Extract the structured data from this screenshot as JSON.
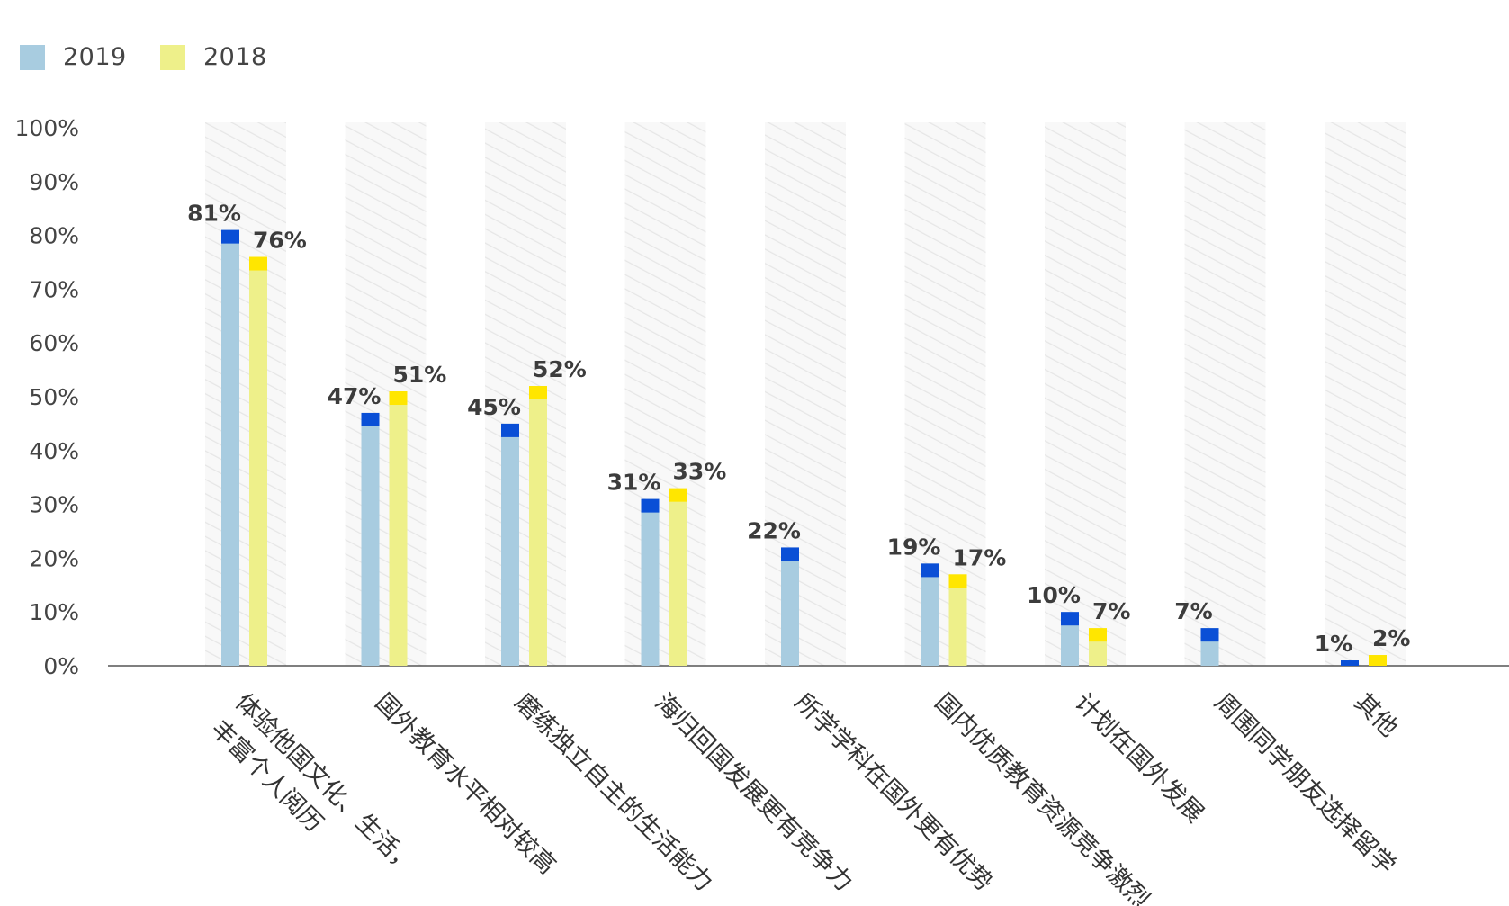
{
  "chart_data": {
    "type": "bar",
    "categories": [
      [
        "体验他国文化、生活，",
        "丰富个人阅历"
      ],
      [
        "国外教育水平相对较高"
      ],
      [
        "磨练独立自主的生活能力"
      ],
      [
        "海归回国发展更有竞争力"
      ],
      [
        "所学学科在国外更有优势"
      ],
      [
        "国内优质教育资源竞争激烈"
      ],
      [
        "计划在国外发展"
      ],
      [
        "周围同学朋友选择留学"
      ],
      [
        "其他"
      ]
    ],
    "series": [
      {
        "name": "2019",
        "color": "#a8cce0",
        "cap_color": "#0a4fd6",
        "values": [
          81,
          47,
          45,
          31,
          22,
          19,
          10,
          7,
          1
        ],
        "labels": [
          "81%",
          "47%",
          "45%",
          "31%",
          "22%",
          "19%",
          "10%",
          "7%",
          "1%"
        ]
      },
      {
        "name": "2018",
        "color": "#eef08a",
        "cap_color": "#ffe600",
        "values": [
          76,
          51,
          52,
          33,
          null,
          17,
          7,
          null,
          2
        ],
        "labels": [
          "76%",
          "51%",
          "52%",
          "33%",
          null,
          "17%",
          "7%",
          null,
          "2%"
        ]
      }
    ],
    "ylim": [
      0,
      100
    ],
    "yticks": [
      "0%",
      "10%",
      "20%",
      "30%",
      "40%",
      "50%",
      "60%",
      "70%",
      "80%",
      "90%",
      "100%"
    ],
    "legend_position": "top-left",
    "grid": false
  }
}
